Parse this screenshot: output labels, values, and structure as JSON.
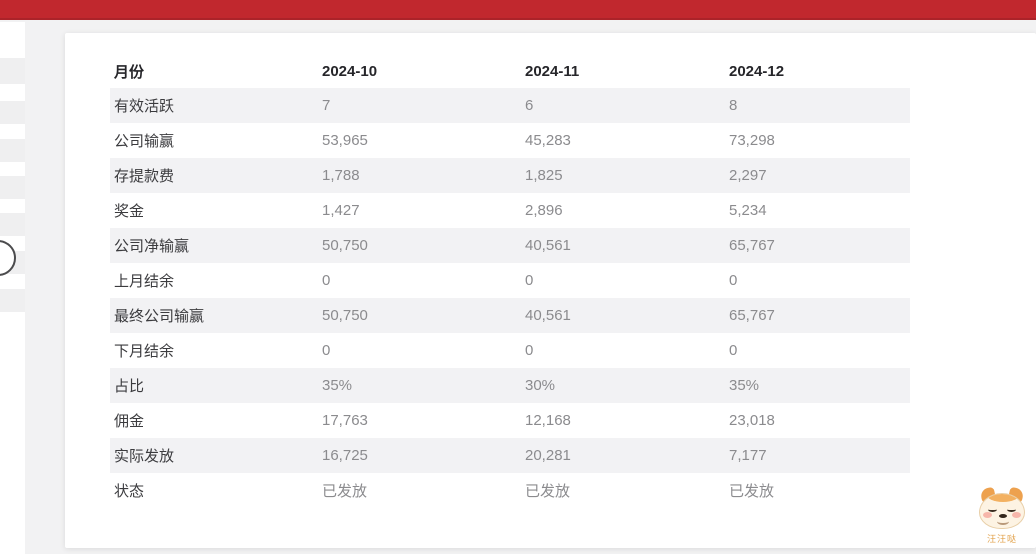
{
  "topbar": {
    "color": "#c1282e"
  },
  "table": {
    "header": {
      "label": "月份",
      "columns": [
        "2024-10",
        "2024-11",
        "2024-12"
      ]
    },
    "rows": [
      {
        "label": "有效活跃",
        "values": [
          "7",
          "6",
          "8"
        ],
        "striped": true
      },
      {
        "label": "公司输赢",
        "values": [
          "53,965",
          "45,283",
          "73,298"
        ],
        "striped": false
      },
      {
        "label": "存提款费",
        "values": [
          "1,788",
          "1,825",
          "2,297"
        ],
        "striped": true
      },
      {
        "label": "奖金",
        "values": [
          "1,427",
          "2,896",
          "5,234"
        ],
        "striped": false
      },
      {
        "label": "公司净输赢",
        "values": [
          "50,750",
          "40,561",
          "65,767"
        ],
        "striped": true
      },
      {
        "label": "上月结余",
        "values": [
          "0",
          "0",
          "0"
        ],
        "striped": false
      },
      {
        "label": "最终公司输赢",
        "values": [
          "50,750",
          "40,561",
          "65,767"
        ],
        "striped": true
      },
      {
        "label": "下月结余",
        "values": [
          "0",
          "0",
          "0"
        ],
        "striped": false
      },
      {
        "label": "占比",
        "values": [
          "35%",
          "30%",
          "35%"
        ],
        "striped": true
      },
      {
        "label": "佣金",
        "values": [
          "17,763",
          "12,168",
          "23,018"
        ],
        "striped": false
      },
      {
        "label": "实际发放",
        "values": [
          "16,725",
          "20,281",
          "7,177"
        ],
        "striped": true
      },
      {
        "label": "状态",
        "values": [
          "已发放",
          "已发放",
          "已发放"
        ],
        "striped": false
      }
    ]
  },
  "mascot": {
    "caption": "汪汪哒"
  },
  "colors": {
    "topbar_red": "#c1282e",
    "page_background": "#f2f2f3",
    "stripe_gray": "#f2f2f4",
    "label_text": "#3b3b3e",
    "value_text": "#8b8b8e",
    "mascot_caption": "#e2a24b"
  }
}
